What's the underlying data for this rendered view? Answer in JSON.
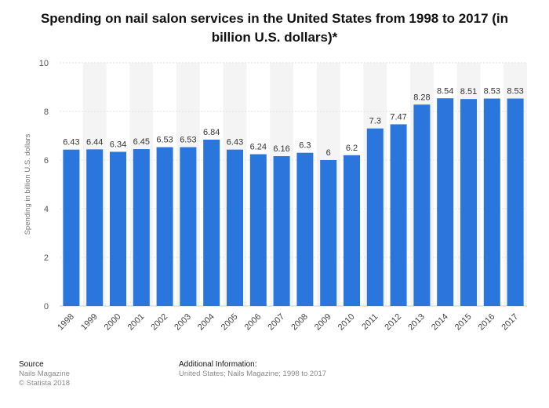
{
  "chart_data": {
    "type": "bar",
    "title": "Spending on nail salon services in the United States from 1998 to 2017 (in billion U.S. dollars)*",
    "xlabel": "",
    "ylabel": "Spending in billion U.S. dollars",
    "ylim": [
      0,
      10
    ],
    "yticks": [
      0,
      2,
      4,
      6,
      8,
      10
    ],
    "grid": true,
    "categories": [
      "1998",
      "1999",
      "2000",
      "2001",
      "2002",
      "2003",
      "2004",
      "2005",
      "2006",
      "2007",
      "2008",
      "2009",
      "2010",
      "2011",
      "2012",
      "2013",
      "2014",
      "2015",
      "2016",
      "2017"
    ],
    "values": [
      6.43,
      6.44,
      6.34,
      6.45,
      6.53,
      6.53,
      6.84,
      6.43,
      6.24,
      6.16,
      6.3,
      6,
      6.2,
      7.3,
      7.47,
      8.28,
      8.54,
      8.51,
      8.53,
      8.53
    ],
    "bar_color": "#2a76dd"
  },
  "footer": {
    "source_heading": "Source",
    "source_name": "Nails Magazine",
    "copyright": "© Statista 2018",
    "info_heading": "Additional Information:",
    "info_text": "United States; Nails Magazine; 1998 to 2017"
  }
}
